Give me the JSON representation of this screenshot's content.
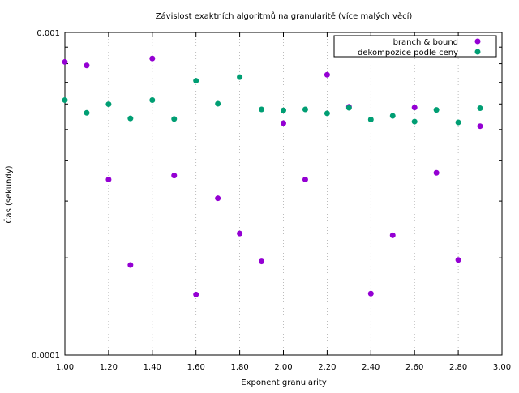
{
  "chart_data": {
    "type": "scatter",
    "title": "Závislost exaktních algoritmů na granularitě (více malých věcí)",
    "xlabel": "Exponent granularity",
    "ylabel": "Čas (sekundy)",
    "xlim": [
      1.0,
      3.0
    ],
    "ylim": [
      0.0001,
      0.001
    ],
    "yscale": "log",
    "grid": "vertical dotted",
    "legend_position": "top-right",
    "x_ticks": [
      "1.00",
      "1.20",
      "1.40",
      "1.60",
      "1.80",
      "2.00",
      "2.20",
      "2.40",
      "2.60",
      "2.80",
      "3.00"
    ],
    "y_ticks": [
      "0.001",
      "0.0001"
    ],
    "series": [
      {
        "name": "branch & bound",
        "color": "#9400d3",
        "x": [
          1.0,
          1.1,
          1.2,
          1.3,
          1.4,
          1.5,
          1.6,
          1.7,
          1.8,
          1.9,
          2.0,
          2.1,
          2.2,
          2.3,
          2.4,
          2.5,
          2.6,
          2.7,
          2.8,
          2.9
        ],
        "y": [
          0.00081,
          0.00079,
          0.00035,
          0.00019,
          0.00083,
          0.00036,
          0.000154,
          0.000306,
          0.000238,
          0.000195,
          0.000523,
          0.00035,
          0.000739,
          0.000588,
          0.000155,
          0.000235,
          0.000585,
          0.000367,
          0.000197,
          0.000512
        ]
      },
      {
        "name": "dekompozice podle ceny",
        "color": "#009e73",
        "x": [
          1.0,
          1.1,
          1.2,
          1.3,
          1.4,
          1.5,
          1.6,
          1.7,
          1.8,
          1.9,
          2.0,
          2.1,
          2.2,
          2.3,
          2.4,
          2.5,
          2.6,
          2.7,
          2.8,
          2.9
        ],
        "y": [
          0.000617,
          0.000563,
          0.000599,
          0.000541,
          0.000617,
          0.000539,
          0.000708,
          0.000601,
          0.000727,
          0.000577,
          0.000573,
          0.000577,
          0.000561,
          0.000584,
          0.000537,
          0.000551,
          0.000529,
          0.000575,
          0.000526,
          0.000582
        ]
      }
    ]
  }
}
